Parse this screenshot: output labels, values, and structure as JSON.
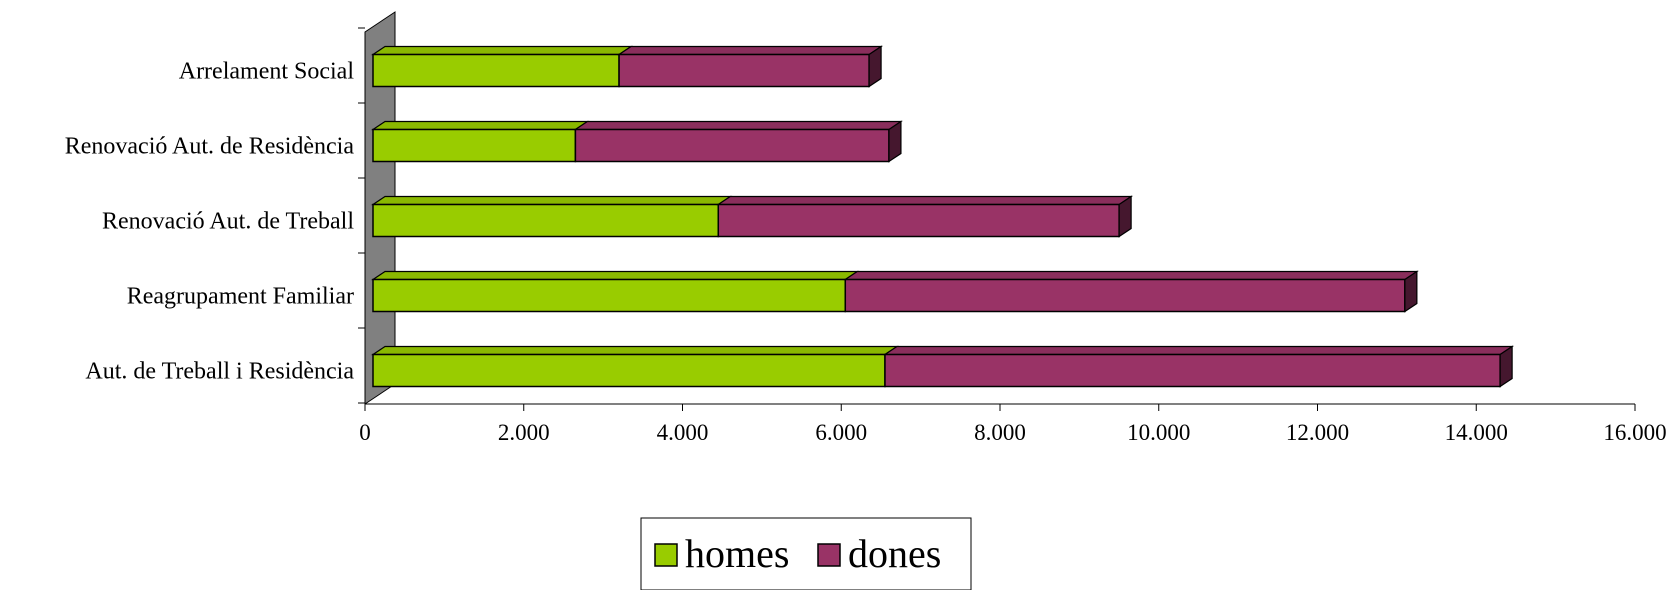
{
  "chart_data": {
    "type": "bar",
    "orientation": "horizontal",
    "stacked": true,
    "style": "3d",
    "categories": [
      "Aut. de Treball i Residència",
      "Reagrupament Familiar",
      "Renovació Aut. de Treball",
      "Renovació Aut. de Residència",
      "Arrelament Social"
    ],
    "series": [
      {
        "name": "homes",
        "color": "#99cc00",
        "values": [
          6450,
          5950,
          4350,
          2550,
          3100
        ]
      },
      {
        "name": "dones",
        "color": "#993366",
        "values": [
          7750,
          7050,
          5050,
          3950,
          3150
        ]
      }
    ],
    "xlim": [
      0,
      16000
    ],
    "xticks": [
      0,
      2000,
      4000,
      6000,
      8000,
      10000,
      12000,
      14000,
      16000
    ],
    "xtick_labels": [
      "0",
      "2.000",
      "4.000",
      "6.000",
      "8.000",
      "10.000",
      "12.000",
      "14.000",
      "16.000"
    ],
    "legend": {
      "position": "bottom",
      "entries": [
        "homes",
        "dones"
      ]
    },
    "grid": false,
    "wall_color": "#808080"
  }
}
